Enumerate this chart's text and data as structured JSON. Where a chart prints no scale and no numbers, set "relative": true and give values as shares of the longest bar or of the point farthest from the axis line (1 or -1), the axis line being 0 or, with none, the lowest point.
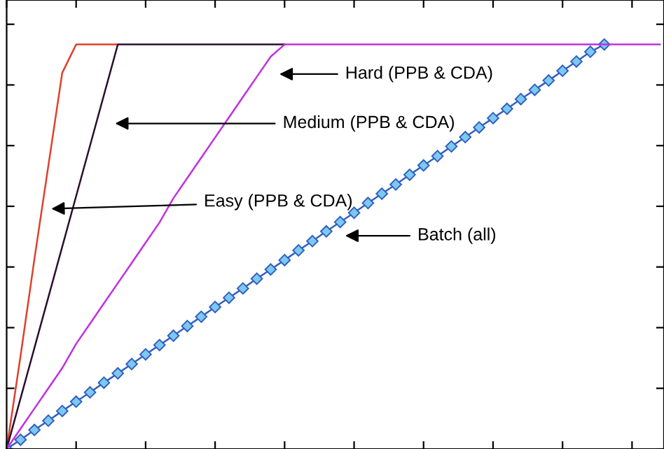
{
  "chart_data": {
    "type": "line",
    "relative": true,
    "tick_labels": false,
    "grid": false,
    "legend": false,
    "categories": [
      null,
      null,
      null,
      null,
      null,
      null,
      null,
      null,
      null,
      null,
      null,
      null,
      null,
      null,
      null,
      null,
      null,
      null,
      null,
      null,
      null,
      null,
      null,
      null,
      null,
      null,
      null,
      null,
      null,
      null,
      null,
      null,
      null,
      null,
      null,
      null,
      null,
      null,
      null,
      null,
      null,
      null,
      null,
      null,
      null,
      null,
      null,
      null
    ],
    "series": [
      {
        "color": "#e0402a",
        "marker": "none",
        "values": [
          0,
          0.23,
          0.47,
          0.7,
          0.93,
          1,
          1,
          1,
          1,
          null,
          null,
          null,
          null,
          null,
          null,
          null,
          null,
          null,
          null,
          null,
          null,
          null,
          null,
          null,
          null,
          null,
          null,
          null,
          null,
          null,
          null,
          null,
          null,
          null,
          null,
          null,
          null,
          null,
          null,
          null,
          null,
          null,
          null,
          null,
          null,
          null,
          null,
          null
        ]
      },
      {
        "color": "#2a1030",
        "marker": "none",
        "values": [
          0,
          0.125,
          0.25,
          0.375,
          0.5,
          0.625,
          0.75,
          0.875,
          1,
          1,
          1,
          1,
          1,
          1,
          1,
          1,
          1,
          1,
          1,
          1,
          1,
          null,
          null,
          null,
          null,
          null,
          null,
          null,
          null,
          null,
          null,
          null,
          null,
          null,
          null,
          null,
          null,
          null,
          null,
          null,
          null,
          null,
          null,
          null,
          null,
          null,
          null,
          null
        ]
      },
      {
        "color": "#3060c0",
        "marker": "diamond",
        "values": [
          0,
          0.023,
          0.047,
          0.07,
          0.094,
          0.117,
          0.14,
          0.164,
          0.187,
          0.21,
          0.234,
          0.257,
          0.28,
          0.304,
          0.327,
          0.351,
          0.374,
          0.397,
          0.421,
          0.444,
          0.467,
          0.491,
          0.514,
          0.538,
          0.561,
          0.584,
          0.608,
          0.631,
          0.654,
          0.678,
          0.701,
          0.724,
          0.748,
          0.771,
          0.795,
          0.818,
          0.841,
          0.865,
          0.888,
          0.911,
          0.935,
          0.958,
          0.982,
          1,
          null,
          null,
          null,
          null
        ]
      },
      {
        "color": "#c030e0",
        "marker": "none",
        "values": [
          0,
          0.05,
          0.1,
          0.15,
          0.2,
          0.26,
          0.31,
          0.36,
          0.41,
          0.46,
          0.51,
          0.56,
          0.62,
          0.67,
          0.72,
          0.77,
          0.82,
          0.87,
          0.92,
          0.97,
          1,
          1,
          1,
          1,
          1,
          1,
          1,
          1,
          1,
          1,
          1,
          1,
          1,
          1,
          1,
          1,
          1,
          1,
          1,
          1,
          1,
          1,
          1,
          1,
          1,
          1,
          1,
          1
        ]
      }
    ],
    "annotations": [
      "Hard (PPB & CDA)",
      "Medium (PPB & CDA)",
      "Easy (PPB & CDA)",
      "Batch (all)"
    ]
  }
}
